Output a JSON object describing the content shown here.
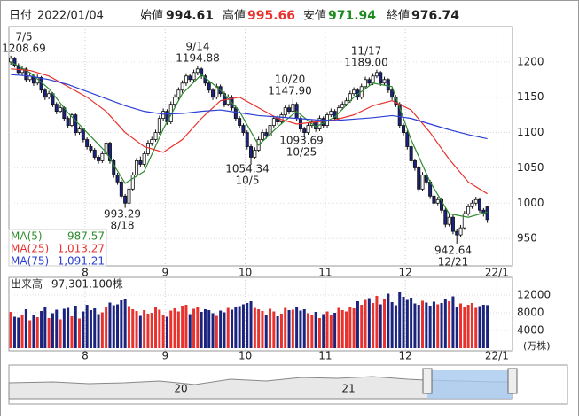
{
  "header": {
    "date_label": "日付",
    "date": "2022/01/04",
    "open_label": "始値",
    "open": 994.61,
    "high_label": "高値",
    "high": 995.66,
    "low_label": "安値",
    "low": 971.94,
    "close_label": "終値",
    "close": 976.74
  },
  "navigator": {
    "labels": [
      "20",
      "21"
    ]
  },
  "chart_data": [
    {
      "type": "candlestick",
      "up_color": "#ffffff",
      "down_color": "#1a237e",
      "xlim": [
        -0.5,
        131.6
      ],
      "ylim": [
        911.25,
        1250
      ],
      "yticks": [
        950,
        1000,
        1050,
        1100,
        1150,
        1200
      ],
      "grid": true,
      "xticks": [
        {
          "value": 19.5,
          "label": "8"
        },
        {
          "value": 40.5,
          "label": "9"
        },
        {
          "value": 61.5,
          "label": "10"
        },
        {
          "value": 82.5,
          "label": "11"
        },
        {
          "value": 103.5,
          "label": "12"
        },
        {
          "value": 127.5,
          "label": "22/1"
        }
      ],
      "open": [
        1200,
        1205,
        1195,
        1185,
        1190,
        1175,
        1180,
        1170,
        1178,
        1160,
        1150,
        1155,
        1140,
        1130,
        1135,
        1120,
        1110,
        1125,
        1100,
        1105,
        1090,
        1080,
        1075,
        1065,
        1060,
        1070,
        1085,
        1060,
        1040,
        1030,
        1010,
        1000,
        1020,
        1040,
        1060,
        1055,
        1070,
        1085,
        1090,
        1100,
        1120,
        1130,
        1115,
        1140,
        1150,
        1160,
        1170,
        1180,
        1175,
        1185,
        1190,
        1180,
        1170,
        1160,
        1150,
        1165,
        1155,
        1140,
        1150,
        1135,
        1120,
        1110,
        1100,
        1080,
        1065,
        1075,
        1090,
        1100,
        1095,
        1110,
        1120,
        1115,
        1125,
        1135,
        1130,
        1140,
        1120,
        1105,
        1100,
        1110,
        1115,
        1105,
        1120,
        1110,
        1125,
        1130,
        1120,
        1135,
        1140,
        1145,
        1155,
        1160,
        1150,
        1165,
        1175,
        1170,
        1180,
        1185,
        1170,
        1175,
        1160,
        1150,
        1140,
        1110,
        1100,
        1080,
        1060,
        1050,
        1020,
        1040,
        1030,
        1010,
        1000,
        1005,
        990,
        970,
        980,
        960,
        955,
        965,
        985,
        995,
        1000,
        1005,
        990,
        994.61
      ],
      "high": [
        1208.69,
        1207,
        1198,
        1194,
        1192,
        1184,
        1183,
        1182,
        1180,
        1163,
        1159,
        1157,
        1143,
        1139,
        1137,
        1123,
        1128,
        1127,
        1109,
        1107,
        1093,
        1084,
        1078,
        1068,
        1074,
        1088,
        1087,
        1063,
        1043,
        1033,
        1013,
        1024,
        1044,
        1064,
        1066,
        1074,
        1089,
        1094,
        1104,
        1124,
        1134,
        1133,
        1144,
        1154,
        1164,
        1174,
        1184,
        1183,
        1189,
        1194.88,
        1192,
        1183,
        1173,
        1163,
        1169,
        1168,
        1158,
        1154,
        1153,
        1138,
        1123,
        1113,
        1103,
        1083,
        1079,
        1094,
        1104,
        1105,
        1114,
        1124,
        1124,
        1129,
        1139,
        1140,
        1147.9,
        1143,
        1123,
        1108,
        1114,
        1119,
        1118,
        1124,
        1123,
        1129,
        1134,
        1133,
        1139,
        1144,
        1149,
        1159,
        1164,
        1163,
        1169,
        1179,
        1178,
        1184,
        1189,
        1187,
        1179,
        1177,
        1163,
        1153,
        1143,
        1113,
        1103,
        1083,
        1063,
        1053,
        1044,
        1043,
        1033,
        1013,
        1009,
        1008,
        993,
        984,
        983,
        963,
        969,
        989,
        999,
        1004,
        1009,
        1008,
        993,
        995.66
      ],
      "low": [
        1196,
        1192,
        1182,
        1181,
        1172,
        1171,
        1166,
        1167,
        1156,
        1146,
        1147,
        1136,
        1126,
        1127,
        1116,
        1106,
        1108,
        1096,
        1097,
        1086,
        1076,
        1071,
        1061,
        1056,
        1057,
        1068,
        1056,
        1036,
        1026,
        1006,
        993.29,
        997,
        1017,
        1037,
        1051,
        1052,
        1067,
        1081,
        1087,
        1097,
        1116,
        1111,
        1112,
        1136,
        1146,
        1156,
        1166,
        1171,
        1172,
        1181,
        1176,
        1166,
        1156,
        1146,
        1147,
        1151,
        1136,
        1137,
        1131,
        1116,
        1106,
        1096,
        1076,
        1054.34,
        1062,
        1072,
        1087,
        1091,
        1092,
        1107,
        1111,
        1112,
        1122,
        1126,
        1127,
        1116,
        1101,
        1093.69,
        1097,
        1107,
        1101,
        1102,
        1106,
        1107,
        1122,
        1116,
        1117,
        1132,
        1137,
        1142,
        1152,
        1146,
        1147,
        1162,
        1166,
        1167,
        1177,
        1166,
        1167,
        1156,
        1146,
        1136,
        1106,
        1096,
        1076,
        1056,
        1046,
        1016,
        1017,
        1026,
        1006,
        996,
        997,
        986,
        966,
        967,
        956,
        942.64,
        952,
        962,
        982,
        992,
        997,
        986,
        981,
        971.94
      ],
      "close": [
        1205,
        1195,
        1185,
        1190,
        1175,
        1180,
        1170,
        1178,
        1160,
        1150,
        1155,
        1140,
        1130,
        1135,
        1120,
        1110,
        1125,
        1100,
        1105,
        1090,
        1080,
        1075,
        1065,
        1060,
        1070,
        1085,
        1060,
        1040,
        1030,
        1010,
        1000,
        1020,
        1040,
        1060,
        1055,
        1070,
        1085,
        1090,
        1100,
        1120,
        1130,
        1115,
        1140,
        1150,
        1160,
        1170,
        1180,
        1175,
        1185,
        1190,
        1180,
        1170,
        1160,
        1150,
        1165,
        1155,
        1140,
        1150,
        1135,
        1120,
        1110,
        1100,
        1080,
        1065,
        1075,
        1090,
        1100,
        1095,
        1110,
        1120,
        1115,
        1125,
        1135,
        1130,
        1140,
        1120,
        1105,
        1100,
        1110,
        1115,
        1105,
        1120,
        1110,
        1125,
        1130,
        1120,
        1135,
        1140,
        1145,
        1155,
        1160,
        1150,
        1165,
        1175,
        1170,
        1180,
        1185,
        1170,
        1175,
        1160,
        1150,
        1140,
        1110,
        1100,
        1080,
        1060,
        1050,
        1020,
        1040,
        1030,
        1010,
        1000,
        1005,
        990,
        970,
        980,
        960,
        955,
        965,
        985,
        995,
        1000,
        1005,
        990,
        985,
        976.74
      ],
      "series": [
        {
          "name": "MA(5)",
          "color": "#2e8b2e",
          "latest": "987.57",
          "x": [
            0,
            5,
            10,
            15,
            20,
            25,
            30,
            35,
            40,
            45,
            50,
            55,
            60,
            65,
            70,
            75,
            80,
            85,
            90,
            95,
            100,
            105,
            110,
            115,
            120,
            125
          ],
          "values": [
            1200,
            1185,
            1162,
            1128,
            1100,
            1072,
            1028,
            1045,
            1105,
            1155,
            1182,
            1160,
            1130,
            1082,
            1108,
            1130,
            1108,
            1122,
            1150,
            1170,
            1165,
            1090,
            1030,
            985,
            980,
            987.57
          ]
        },
        {
          "name": "MA(25)",
          "color": "#e8322e",
          "latest": "1,013.27",
          "x": [
            0,
            5,
            10,
            15,
            20,
            25,
            30,
            35,
            40,
            45,
            50,
            55,
            60,
            65,
            70,
            75,
            80,
            85,
            90,
            95,
            100,
            105,
            110,
            115,
            120,
            125
          ],
          "values": [
            1190,
            1188,
            1180,
            1165,
            1150,
            1130,
            1100,
            1080,
            1072,
            1090,
            1120,
            1145,
            1150,
            1135,
            1120,
            1112,
            1115,
            1118,
            1125,
            1138,
            1145,
            1132,
            1100,
            1062,
            1030,
            1013.27
          ]
        },
        {
          "name": "MA(75)",
          "color": "#2b3fd6",
          "latest": "1,091.21",
          "x": [
            0,
            5,
            10,
            15,
            20,
            25,
            30,
            35,
            40,
            45,
            50,
            55,
            60,
            65,
            70,
            75,
            80,
            85,
            90,
            95,
            100,
            105,
            110,
            115,
            120,
            125
          ],
          "values": [
            1182,
            1180,
            1175,
            1168,
            1158,
            1148,
            1138,
            1130,
            1126,
            1127,
            1130,
            1132,
            1128,
            1124,
            1122,
            1120,
            1118,
            1117,
            1119,
            1121,
            1124,
            1120,
            1112,
            1104,
            1097,
            1091.21
          ]
        }
      ],
      "annotations": [
        {
          "lines": [
            "7/5",
            "1208.69"
          ]
        },
        {
          "lines": [
            "9/14",
            "1194.88"
          ]
        },
        {
          "lines": [
            "10/20",
            "1147.90"
          ]
        },
        {
          "lines": [
            "11/17",
            "1189.00"
          ]
        },
        {
          "lines": [
            "1093.69",
            "10/25"
          ]
        },
        {
          "lines": [
            "1054.34",
            "10/5"
          ]
        },
        {
          "lines": [
            "993.29",
            "8/18"
          ]
        },
        {
          "lines": [
            "942.64",
            "12/21"
          ]
        }
      ]
    },
    {
      "type": "bar",
      "title": "出来高",
      "subtitle": "97,301,100株",
      "unit": "(万株)",
      "up_color": "#e8322e",
      "down_color": "#1a237e",
      "ylim": [
        0,
        16000
      ],
      "yticks": [
        4000,
        8000,
        12000
      ],
      "grid": true,
      "values": [
        8200,
        7100,
        6900,
        7400,
        8800,
        6300,
        7600,
        7000,
        8400,
        9300,
        6800,
        7900,
        8700,
        6500,
        8900,
        9100,
        7200,
        9600,
        6700,
        8300,
        9800,
        8600,
        9000,
        7700,
        8100,
        9400,
        10300,
        9700,
        9900,
        10800,
        11200,
        9500,
        8800,
        8400,
        7300,
        8600,
        7800,
        8000,
        9200,
        8700,
        7400,
        7100,
        8500,
        9000,
        8300,
        9600,
        9800,
        7700,
        8900,
        9400,
        8200,
        8800,
        8600,
        7900,
        7300,
        8500,
        8100,
        9100,
        8700,
        9300,
        9500,
        9900,
        10200,
        10600,
        9100,
        8800,
        8400,
        7600,
        8900,
        8300,
        7200,
        7800,
        9100,
        8600,
        8700,
        9300,
        8500,
        8800,
        7900,
        7500,
        8200,
        6800,
        7700,
        8300,
        7400,
        8000,
        9100,
        8600,
        8300,
        9400,
        9000,
        10600,
        9800,
        10900,
        11300,
        10200,
        11800,
        9900,
        11200,
        12300,
        10400,
        9700,
        12800,
        11600,
        10900,
        11400,
        10100,
        9800,
        10700,
        10300,
        9600,
        10500,
        9900,
        10200,
        11000,
        10600,
        11700,
        9400,
        10100,
        9300,
        9800,
        10200,
        9100,
        9500,
        9800,
        9730
      ]
    }
  ]
}
